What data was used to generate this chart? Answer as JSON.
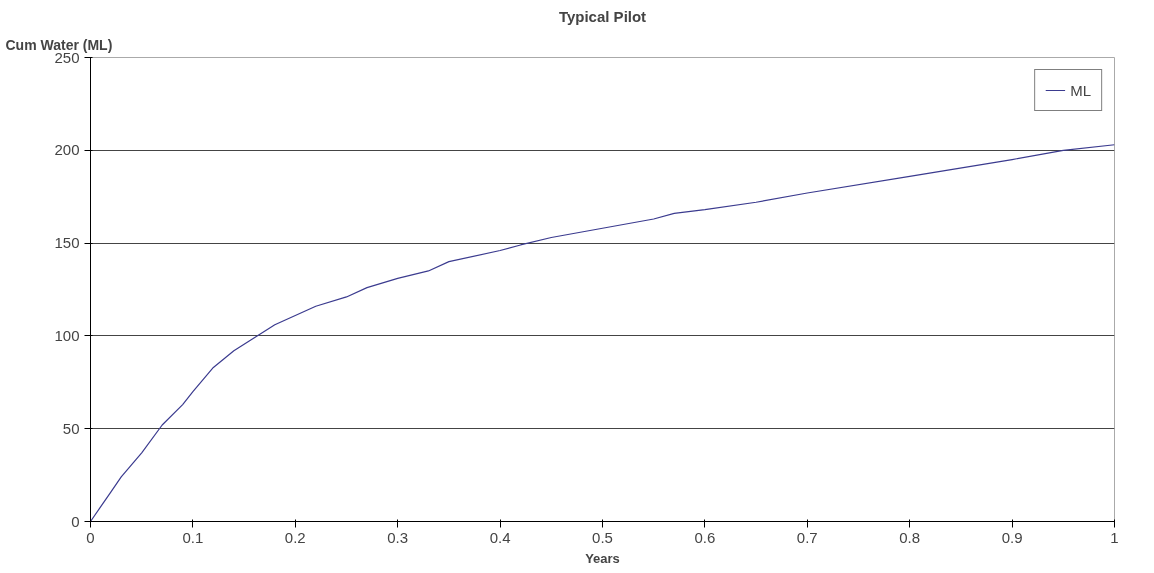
{
  "chart_data": {
    "type": "line",
    "title": "Typical Pilot",
    "xlabel": "Years",
    "ylabel": "Cum Water (ML)",
    "xlim": [
      0,
      1
    ],
    "xticks": [
      0,
      0.1,
      0.2,
      0.3,
      0.4,
      0.5,
      0.6,
      0.7,
      0.8,
      0.9,
      1
    ],
    "ylim": [
      0,
      250
    ],
    "yticks": [
      0,
      50,
      100,
      150,
      200,
      250
    ],
    "grid": "y",
    "legend": "top right",
    "series": [
      {
        "name": "ML",
        "color": "#3b3b8f",
        "x": [
          0,
          0.01,
          0.02,
          0.03,
          0.05,
          0.07,
          0.09,
          0.1,
          0.12,
          0.14,
          0.16,
          0.18,
          0.2,
          0.22,
          0.25,
          0.27,
          0.3,
          0.33,
          0.35,
          0.4,
          0.42,
          0.45,
          0.5,
          0.55,
          0.57,
          0.6,
          0.65,
          0.7,
          0.8,
          0.9,
          0.95,
          1
        ],
        "values": [
          0,
          8,
          16,
          24,
          37,
          52,
          63,
          70,
          83,
          92,
          99,
          106,
          111,
          116,
          121,
          126,
          131,
          135,
          140,
          146,
          149,
          153,
          158,
          163,
          166,
          168,
          172,
          177,
          186,
          195,
          200,
          203
        ]
      }
    ]
  }
}
